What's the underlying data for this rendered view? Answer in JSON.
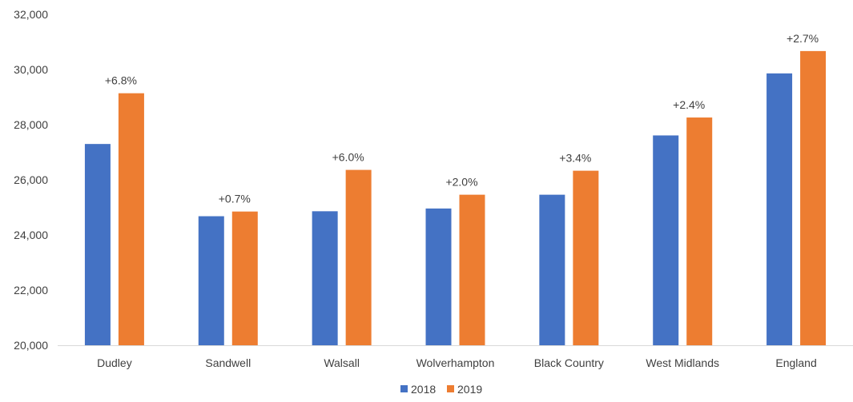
{
  "chart_data": {
    "type": "bar",
    "categories": [
      "Dudley",
      "Sandwell",
      "Walsall",
      "Wolverhampton",
      "Black Country",
      "West Midlands",
      "England"
    ],
    "series": [
      {
        "name": "2018",
        "color": "#4472C4",
        "values": [
          27300,
          24680,
          24860,
          24960,
          25460,
          27610,
          29860
        ]
      },
      {
        "name": "2019",
        "color": "#ED7D31",
        "values": [
          29140,
          24850,
          26360,
          25460,
          26330,
          28260,
          30670
        ]
      }
    ],
    "data_labels": [
      "+6.8%",
      "+0.7%",
      "+6.0%",
      "+2.0%",
      "+3.4%",
      "+2.4%",
      "+2.7%"
    ],
    "ylim": [
      20000,
      32000
    ],
    "y_ticks": [
      "20,000",
      "22,000",
      "24,000",
      "26,000",
      "28,000",
      "30,000",
      "32,000"
    ],
    "y_tick_values": [
      20000,
      22000,
      24000,
      26000,
      28000,
      30000,
      32000
    ],
    "grid": false,
    "legend_position": "bottom-center",
    "title": "",
    "xlabel": "",
    "ylabel": ""
  }
}
